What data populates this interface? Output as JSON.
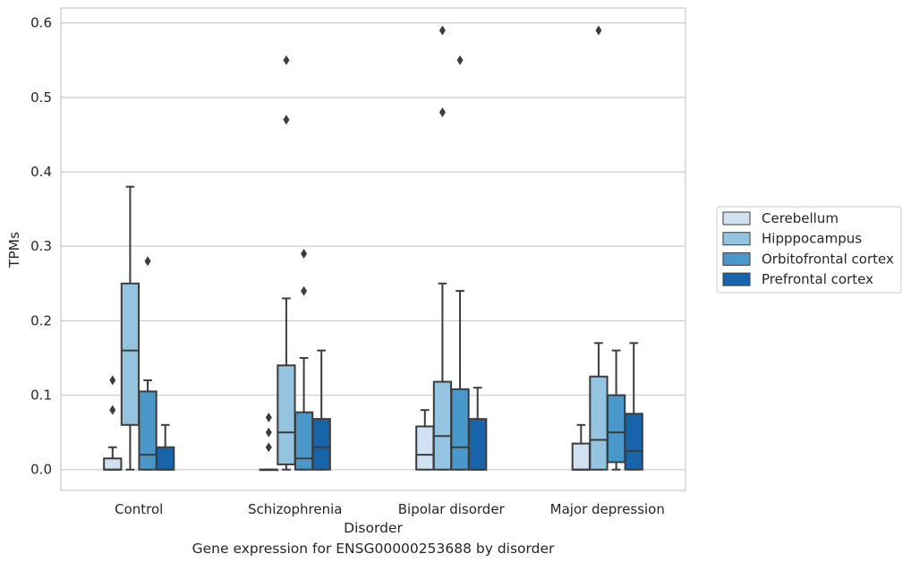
{
  "caption": "Gene expression for ENSG00000253688 by disorder",
  "chart_data": {
    "type": "box",
    "xlabel": "Disorder",
    "ylabel": "TPMs",
    "ylim": [
      -0.028,
      0.62
    ],
    "yticks": [
      0.0,
      0.1,
      0.2,
      0.3,
      0.4,
      0.5,
      0.6
    ],
    "ytick_labels": [
      "0.0",
      "0.1",
      "0.2",
      "0.3",
      "0.4",
      "0.5",
      "0.6"
    ],
    "grid": true,
    "legend_position": "right",
    "categories": [
      "Control",
      "Schizophrenia",
      "Bipolar disorder",
      "Major depression"
    ],
    "series": [
      {
        "name": "Cerebellum",
        "color": "#d0e1f2",
        "boxes": [
          {
            "whislo": 0.0,
            "q1": 0.0,
            "med": 0.0,
            "q3": 0.015,
            "whishi": 0.03,
            "fliers": [
              0.08,
              0.12
            ]
          },
          {
            "whislo": 0.0,
            "q1": 0.0,
            "med": 0.0,
            "q3": 0.0,
            "whishi": 0.0,
            "fliers": [
              0.03,
              0.05,
              0.07
            ]
          },
          {
            "whislo": 0.0,
            "q1": 0.0,
            "med": 0.02,
            "q3": 0.058,
            "whishi": 0.08,
            "fliers": []
          },
          {
            "whislo": 0.0,
            "q1": 0.0,
            "med": 0.0,
            "q3": 0.035,
            "whishi": 0.06,
            "fliers": []
          }
        ]
      },
      {
        "name": "Hipppocampus",
        "color": "#94c4df",
        "boxes": [
          {
            "whislo": 0.0,
            "q1": 0.06,
            "med": 0.16,
            "q3": 0.25,
            "whishi": 0.38,
            "fliers": []
          },
          {
            "whislo": 0.0,
            "q1": 0.007,
            "med": 0.05,
            "q3": 0.14,
            "whishi": 0.23,
            "fliers": [
              0.47,
              0.55
            ]
          },
          {
            "whislo": 0.0,
            "q1": 0.0,
            "med": 0.045,
            "q3": 0.118,
            "whishi": 0.25,
            "fliers": [
              0.48,
              0.59
            ]
          },
          {
            "whislo": 0.0,
            "q1": 0.0,
            "med": 0.04,
            "q3": 0.125,
            "whishi": 0.17,
            "fliers": [
              0.59
            ]
          }
        ]
      },
      {
        "name": "Orbitofrontal cortex",
        "color": "#4a98c9",
        "boxes": [
          {
            "whislo": 0.0,
            "q1": 0.0,
            "med": 0.02,
            "q3": 0.105,
            "whishi": 0.12,
            "fliers": [
              0.28
            ]
          },
          {
            "whislo": 0.0,
            "q1": 0.0,
            "med": 0.015,
            "q3": 0.077,
            "whishi": 0.15,
            "fliers": [
              0.24,
              0.29
            ]
          },
          {
            "whislo": 0.0,
            "q1": 0.0,
            "med": 0.03,
            "q3": 0.108,
            "whishi": 0.24,
            "fliers": [
              0.55
            ]
          },
          {
            "whislo": 0.0,
            "q1": 0.01,
            "med": 0.05,
            "q3": 0.1,
            "whishi": 0.16,
            "fliers": []
          }
        ]
      },
      {
        "name": "Prefrontal cortex",
        "color": "#1764ab",
        "boxes": [
          {
            "whislo": 0.0,
            "q1": 0.0,
            "med": 0.0,
            "q3": 0.03,
            "whishi": 0.06,
            "fliers": []
          },
          {
            "whislo": 0.0,
            "q1": 0.0,
            "med": 0.03,
            "q3": 0.068,
            "whishi": 0.16,
            "fliers": []
          },
          {
            "whislo": 0.0,
            "q1": 0.0,
            "med": 0.0,
            "q3": 0.068,
            "whishi": 0.11,
            "fliers": []
          },
          {
            "whislo": 0.0,
            "q1": 0.0,
            "med": 0.025,
            "q3": 0.075,
            "whishi": 0.17,
            "fliers": []
          }
        ]
      }
    ]
  }
}
